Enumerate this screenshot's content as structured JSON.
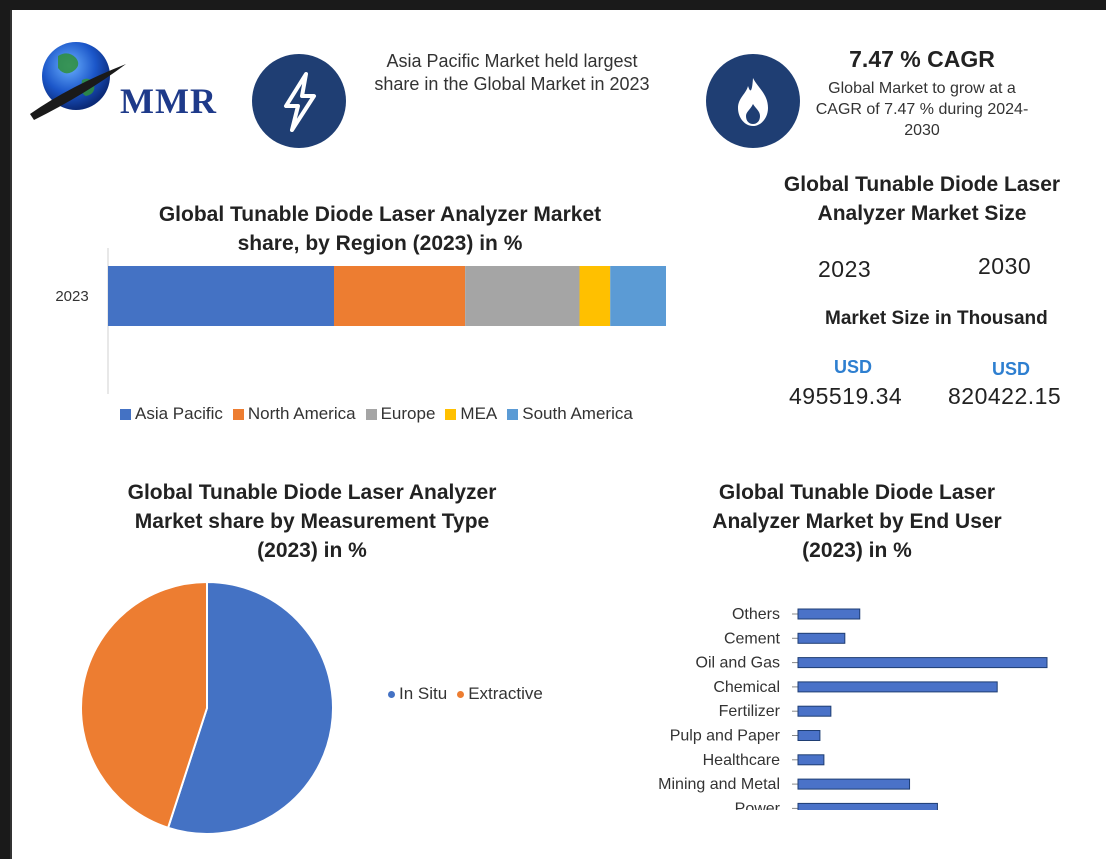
{
  "logo": {
    "text": "MMR"
  },
  "header": {
    "region_info": "Asia Pacific Market held largest share in the Global Market in 2023",
    "cagr_title": "7.47 % CAGR",
    "cagr_text": "Global Market to grow at a CAGR of 7.47 % during 2024-2030"
  },
  "colors": {
    "navy": "#1f3e73",
    "asia_pacific": "#4472c4",
    "north_america": "#ed7d31",
    "europe": "#a5a5a5",
    "mea": "#ffc000",
    "south_america": "#5b9bd5",
    "bar_fill": "#4a72c8"
  },
  "market_size": {
    "title": "Global Tunable Diode Laser Analyzer Market Size",
    "year1": "2023",
    "year2": "2030",
    "subtitle": "Market Size in Thousand",
    "currency1": "USD",
    "currency2": "USD",
    "value1": "495519.34",
    "value2": "820422.15"
  },
  "chart_data": [
    {
      "type": "bar",
      "orientation": "horizontal-stacked",
      "title": "Global Tunable Diode Laser Analyzer Market share, by Region (2023) in %",
      "categories": [
        "2023"
      ],
      "series": [
        {
          "name": "Asia Pacific",
          "values": [
            40.5
          ]
        },
        {
          "name": "North America",
          "values": [
            23.5
          ]
        },
        {
          "name": "Europe",
          "values": [
            20.5
          ]
        },
        {
          "name": "MEA",
          "values": [
            5.5
          ]
        },
        {
          "name": "South America",
          "values": [
            10.0
          ]
        }
      ],
      "legend": "bottom"
    },
    {
      "type": "pie",
      "title": "Global Tunable Diode Laser Analyzer Market share by Measurement Type (2023) in %",
      "labels": [
        "In Situ",
        "Extractive"
      ],
      "values": [
        55,
        45
      ],
      "legend": "right"
    },
    {
      "type": "bar",
      "orientation": "horizontal",
      "title": "Global Tunable Diode Laser Analyzer Market by End User (2023) in %",
      "categories": [
        "Others",
        "Cement",
        "Oil and Gas",
        "Chemical",
        "Fertilizer",
        "Pulp and Paper",
        "Healthcare",
        "Mining and Metal",
        "Power"
      ],
      "values": [
        6.2,
        4.7,
        25,
        20,
        3.3,
        2.2,
        2.6,
        11.2,
        14
      ]
    }
  ]
}
